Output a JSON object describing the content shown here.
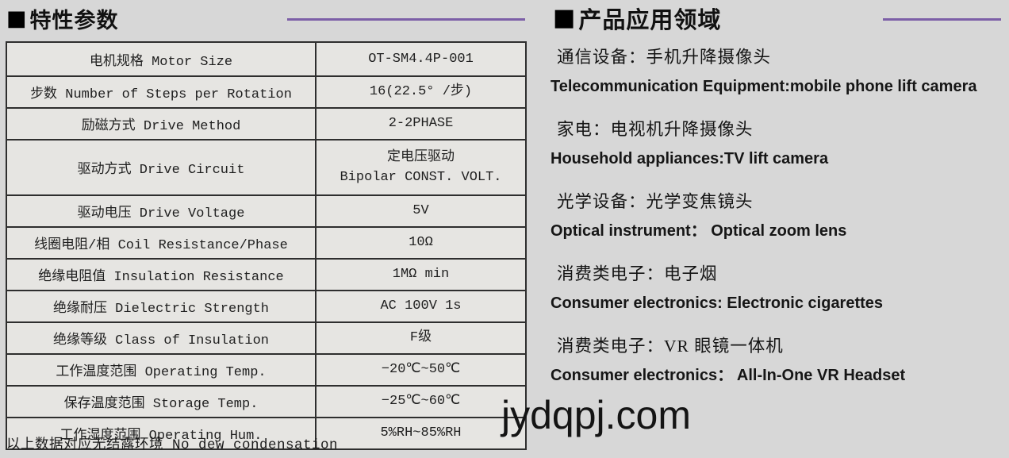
{
  "accent_color": "#7c5fa7",
  "left": {
    "bullet": "■",
    "title": "特性参数",
    "table": {
      "rows": [
        {
          "label": "电机规格 Motor Size",
          "value": "OT-SM4.4P-001"
        },
        {
          "label": "步数 Number of Steps per Rotation",
          "value": "16(22.5° /步)"
        },
        {
          "label": "励磁方式 Drive Method",
          "value": "2-2PHASE"
        },
        {
          "label": "驱动方式 Drive Circuit",
          "value": "定电压驱动\nBipolar CONST. VOLT."
        },
        {
          "label": "驱动电压 Drive Voltage",
          "value": "5V"
        },
        {
          "label": "线圈电阻/相 Coil Resistance/Phase",
          "value": "10Ω"
        },
        {
          "label": "绝缘电阻值 Insulation Resistance",
          "value": "1MΩ min"
        },
        {
          "label": "绝缘耐压 Dielectric Strength",
          "value": "AC 100V 1s"
        },
        {
          "label": "绝缘等级 Class of Insulation",
          "value": "F级"
        },
        {
          "label": "工作温度范围 Operating Temp.",
          "value": "−20℃~50℃"
        },
        {
          "label": "保存温度范围 Storage Temp.",
          "value": "−25℃~60℃"
        },
        {
          "label": "工作湿度范围 Operating Hum.",
          "value": "5%RH~85%RH"
        }
      ]
    },
    "footnote": "以上数据对应无结露环境 No dew condensation"
  },
  "right": {
    "bullet": "■",
    "title": "产品应用领域",
    "items": [
      {
        "zh": "通信设备：手机升降摄像头",
        "en": "Telecommunication Equipment:mobile phone lift camera"
      },
      {
        "zh": "家电：电视机升降摄像头",
        "en": "Household appliances:TV lift camera"
      },
      {
        "zh": "光学设备：光学变焦镜头",
        "en": "Optical instrument：  Optical zoom lens"
      },
      {
        "zh": "消费类电子：电子烟",
        "en": "Consumer electronics: Electronic cigarettes"
      },
      {
        "zh": "消费类电子：VR 眼镜一体机",
        "en": "Consumer electronics：  All-In-One VR Headset"
      }
    ]
  },
  "watermark": "jydqpj.com"
}
